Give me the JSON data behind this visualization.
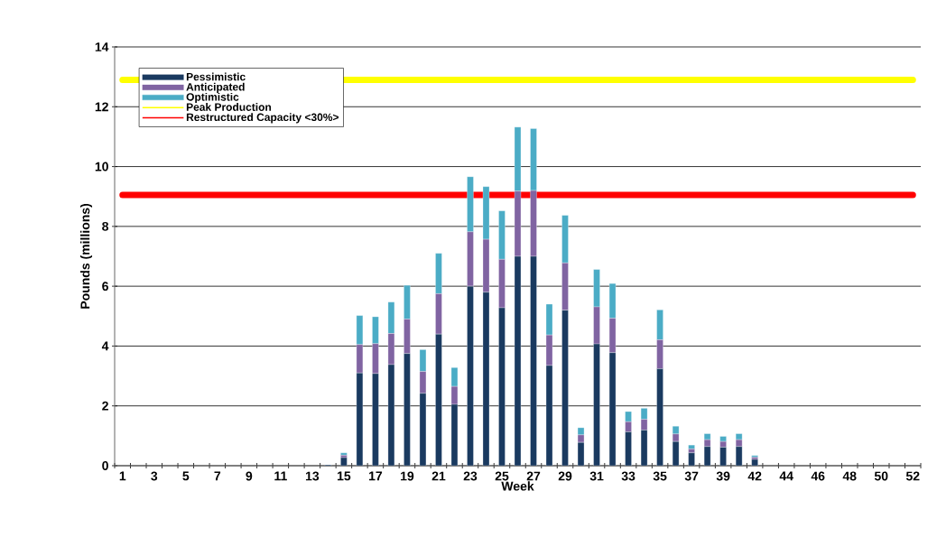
{
  "chart_data": {
    "type": "bar",
    "stacked": true,
    "xlabel": "Week",
    "ylabel": "Pounds (millions)",
    "categories": [
      "1",
      null,
      "3",
      null,
      "5",
      null,
      "7",
      null,
      "9",
      null,
      "11",
      null,
      "13",
      null,
      "15",
      null,
      "17",
      null,
      "19",
      null,
      "21",
      null,
      "23",
      null,
      "25",
      null,
      "27",
      null,
      "29",
      null,
      "31",
      null,
      "33",
      null,
      "35",
      null,
      "37",
      null,
      "39",
      null,
      "42",
      null,
      "44",
      null,
      "46",
      null,
      "48",
      null,
      "50",
      null,
      "52"
    ],
    "series": [
      {
        "name": "Pessimistic",
        "color": "#1a3a60",
        "values": [
          0,
          0,
          0,
          0,
          0,
          0,
          0,
          0,
          0,
          0,
          0,
          0,
          0,
          0.03,
          0.27,
          3.1,
          3.08,
          3.38,
          3.75,
          2.42,
          4.4,
          2.05,
          6.0,
          5.8,
          5.28,
          7.0,
          7.0,
          3.35,
          5.2,
          0.78,
          4.07,
          3.78,
          1.13,
          1.19,
          3.24,
          0.81,
          0.43,
          0.64,
          0.62,
          0.64,
          0.21,
          0,
          0,
          0,
          0,
          0,
          0,
          0,
          0,
          0,
          0
        ]
      },
      {
        "name": "Anticipated",
        "color": "#8064a2",
        "values": [
          0,
          0,
          0,
          0,
          0,
          0,
          0,
          0,
          0,
          0,
          0,
          0,
          0,
          0,
          0.08,
          0.95,
          1.0,
          1.04,
          1.15,
          0.73,
          1.35,
          0.6,
          1.82,
          1.77,
          1.62,
          2.18,
          2.2,
          1.02,
          1.58,
          0.25,
          1.24,
          1.15,
          0.34,
          0.36,
          0.97,
          0.25,
          0.13,
          0.23,
          0.19,
          0.23,
          0.07,
          0,
          0,
          0,
          0,
          0,
          0,
          0,
          0,
          0,
          0
        ]
      },
      {
        "name": "Optimistic",
        "color": "#4bacc6",
        "values": [
          0,
          0,
          0,
          0,
          0,
          0,
          0,
          0,
          0,
          0,
          0,
          0,
          0,
          0,
          0.08,
          0.97,
          0.9,
          1.05,
          1.13,
          0.73,
          1.35,
          0.63,
          1.84,
          1.76,
          1.62,
          2.14,
          2.07,
          1.03,
          1.59,
          0.24,
          1.25,
          1.16,
          0.34,
          0.37,
          1.0,
          0.26,
          0.13,
          0.2,
          0.17,
          0.2,
          0.06,
          0,
          0,
          0,
          0,
          0,
          0,
          0,
          0,
          0,
          0
        ]
      }
    ],
    "ref_lines": [
      {
        "axis": "y",
        "value": 12.9,
        "label": "Peak Production",
        "color": "#ffff00"
      },
      {
        "axis": "y",
        "value": 9.05,
        "label": "Restructured Capacity <30%>",
        "color": "#ff0000"
      }
    ],
    "ylim": [
      0,
      14
    ],
    "yticks": [
      0,
      2,
      4,
      6,
      8,
      10,
      12,
      14
    ],
    "grid": "y",
    "legend": "top left"
  }
}
